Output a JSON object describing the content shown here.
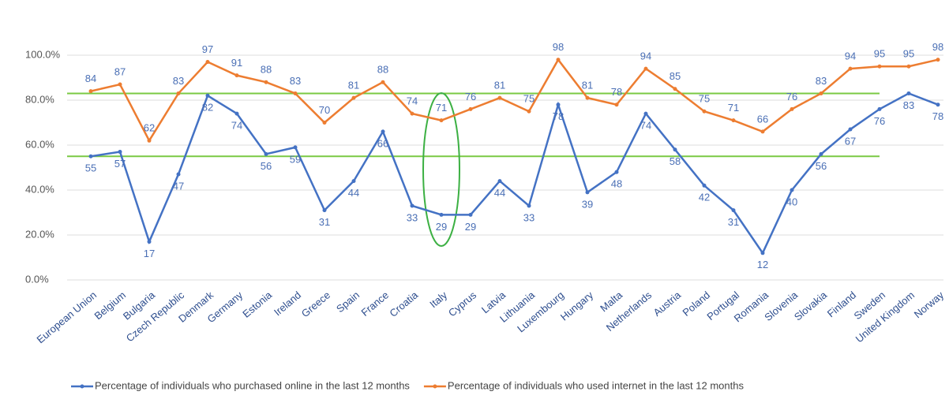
{
  "chart_data": {
    "type": "line",
    "categories": [
      "European Union",
      "Belgium",
      "Bulgaria",
      "Czech Republic",
      "Denmark",
      "Germany",
      "Estonia",
      "Ireland",
      "Greece",
      "Spain",
      "France",
      "Croatia",
      "Italy",
      "Cyprus",
      "Latvia",
      "Lithuania",
      "Luxembourg",
      "Hungary",
      "Malta",
      "Netherlands",
      "Austria",
      "Poland",
      "Portugal",
      "Romania",
      "Slovenia",
      "Slovakia",
      "Finland",
      "Sweden",
      "United Kingdom",
      "Norway"
    ],
    "series": [
      {
        "name": "Percentage of individuals who purchased online in the last 12 months",
        "color": "#4472c4",
        "values": [
          55,
          57,
          17,
          47,
          82,
          74,
          56,
          59,
          31,
          44,
          66,
          33,
          29,
          29,
          44,
          33,
          78,
          39,
          48,
          74,
          58,
          42,
          31,
          12,
          40,
          56,
          67,
          76,
          83,
          78
        ]
      },
      {
        "name": "Percentage of individuals who used internet in the last 12 months",
        "color": "#ed7d31",
        "values": [
          84,
          87,
          62,
          83,
          97,
          91,
          88,
          83,
          70,
          81,
          88,
          74,
          71,
          76,
          81,
          75,
          98,
          81,
          78,
          94,
          85,
          75,
          71,
          66,
          76,
          83,
          94,
          95,
          95,
          98
        ]
      }
    ],
    "ylim": [
      0,
      100
    ],
    "yticks": [
      {
        "value": 0,
        "label": "0.0%"
      },
      {
        "value": 20,
        "label": "20.0%"
      },
      {
        "value": 40,
        "label": "40.0%"
      },
      {
        "value": 60,
        "label": "60.0%"
      },
      {
        "value": 80,
        "label": "80.0%"
      },
      {
        "value": 100,
        "label": "100.0%"
      }
    ],
    "grid": true,
    "legend": "bottom",
    "reference_lines": [
      {
        "value": 83,
        "color": "#7ac943"
      },
      {
        "value": 55,
        "color": "#7ac943"
      }
    ]
  }
}
